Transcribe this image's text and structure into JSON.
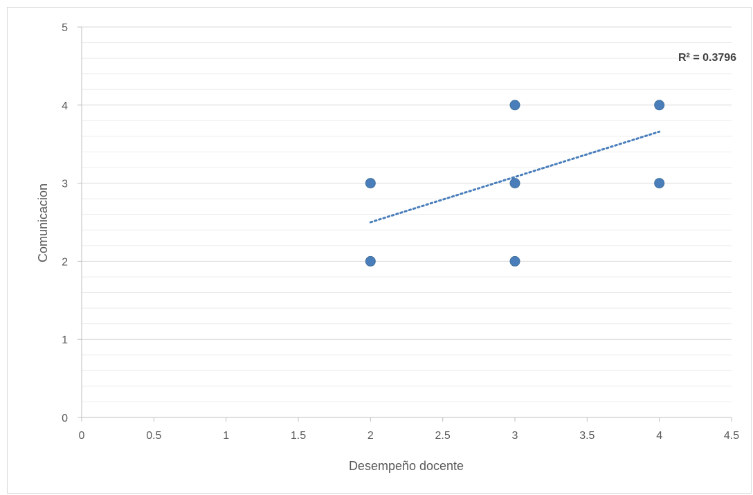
{
  "chart_data": {
    "type": "scatter",
    "xlabel": "Desempeño docente",
    "ylabel": "Comunicacion",
    "xlim": [
      0,
      4.5
    ],
    "ylim": [
      0,
      5
    ],
    "x_ticks": [
      "0",
      "0.5",
      "1",
      "1.5",
      "2",
      "2.5",
      "3",
      "3.5",
      "4",
      "4.5"
    ],
    "y_ticks": [
      "0",
      "1",
      "2",
      "3",
      "4",
      "5"
    ],
    "grid": true,
    "series": [
      {
        "color": "#4a7ebb",
        "points": [
          {
            "x": 2,
            "y": 3
          },
          {
            "x": 2,
            "y": 2
          },
          {
            "x": 3,
            "y": 4
          },
          {
            "x": 3,
            "y": 3
          },
          {
            "x": 3,
            "y": 2
          },
          {
            "x": 4,
            "y": 4
          },
          {
            "x": 4,
            "y": 3
          }
        ]
      }
    ],
    "trendline": {
      "type": "linear",
      "x_range": [
        2,
        4
      ],
      "y_start": 2.5,
      "y_end": 3.66,
      "color": "#4a7ebb",
      "style": "dotted",
      "r2_label": "R² = 0.3796"
    }
  }
}
